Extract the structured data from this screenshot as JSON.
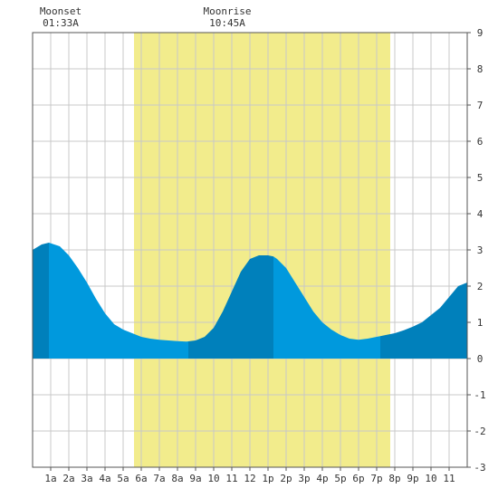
{
  "chart_data": {
    "type": "area",
    "title": "",
    "xlabel": "",
    "ylabel": "",
    "x_unit": "hour of day",
    "xlim": [
      0,
      24
    ],
    "ylim": [
      -3,
      9
    ],
    "grid": true,
    "x_ticks": [
      {
        "x": 1,
        "label": "1a"
      },
      {
        "x": 2,
        "label": "2a"
      },
      {
        "x": 3,
        "label": "3a"
      },
      {
        "x": 4,
        "label": "4a"
      },
      {
        "x": 5,
        "label": "5a"
      },
      {
        "x": 6,
        "label": "6a"
      },
      {
        "x": 7,
        "label": "7a"
      },
      {
        "x": 8,
        "label": "8a"
      },
      {
        "x": 9,
        "label": "9a"
      },
      {
        "x": 10,
        "label": "10"
      },
      {
        "x": 11,
        "label": "11"
      },
      {
        "x": 12,
        "label": "12"
      },
      {
        "x": 13,
        "label": "1p"
      },
      {
        "x": 14,
        "label": "2p"
      },
      {
        "x": 15,
        "label": "3p"
      },
      {
        "x": 16,
        "label": "4p"
      },
      {
        "x": 17,
        "label": "5p"
      },
      {
        "x": 18,
        "label": "6p"
      },
      {
        "x": 19,
        "label": "7p"
      },
      {
        "x": 20,
        "label": "8p"
      },
      {
        "x": 21,
        "label": "9p"
      },
      {
        "x": 22,
        "label": "10"
      },
      {
        "x": 23,
        "label": "11"
      }
    ],
    "y_ticks": [
      -3,
      -2,
      -1,
      0,
      1,
      2,
      3,
      4,
      5,
      6,
      7,
      8,
      9
    ],
    "daylight": {
      "start": 5.6,
      "end": 19.75
    },
    "tide_series": {
      "x": [
        0,
        0.5,
        0.9,
        1.5,
        2,
        2.5,
        3,
        3.5,
        4,
        4.5,
        5,
        5.5,
        6,
        6.5,
        7,
        7.5,
        8,
        8.5,
        9,
        9.5,
        10,
        10.5,
        11,
        11.5,
        12,
        12.5,
        13,
        13.3,
        13.5,
        14,
        14.5,
        15,
        15.5,
        16,
        16.5,
        17,
        17.5,
        18,
        18.5,
        19,
        19.5,
        20,
        20.5,
        21,
        21.5,
        22,
        22.5,
        23,
        23.5,
        24
      ],
      "y": [
        3.0,
        3.15,
        3.2,
        3.1,
        2.85,
        2.5,
        2.1,
        1.65,
        1.25,
        0.95,
        0.8,
        0.7,
        0.6,
        0.55,
        0.52,
        0.5,
        0.48,
        0.47,
        0.5,
        0.6,
        0.85,
        1.3,
        1.85,
        2.4,
        2.75,
        2.85,
        2.85,
        2.82,
        2.75,
        2.5,
        2.1,
        1.7,
        1.3,
        1.0,
        0.8,
        0.65,
        0.55,
        0.52,
        0.55,
        0.6,
        0.65,
        0.7,
        0.78,
        0.88,
        1.0,
        1.2,
        1.4,
        1.7,
        2.0,
        2.1
      ]
    },
    "tide_bands": [
      {
        "start": 0,
        "end": 0.9,
        "tone": "dark"
      },
      {
        "start": 0.9,
        "end": 8.6,
        "tone": "light"
      },
      {
        "start": 8.6,
        "end": 13.3,
        "tone": "dark"
      },
      {
        "start": 13.3,
        "end": 19.2,
        "tone": "light"
      },
      {
        "start": 19.2,
        "end": 24,
        "tone": "dark"
      }
    ],
    "annotations": [
      {
        "name": "moonset",
        "label": "Moonset",
        "time": "01:33A",
        "x": 1.55
      },
      {
        "name": "moonrise",
        "label": "Moonrise",
        "time": "10:45A",
        "x": 10.75
      }
    ],
    "colors": {
      "daylight": "#f2ec8c",
      "tide_light": "#0099dd",
      "tide_dark": "#0080bb",
      "grid": "#c8c8c8",
      "frame": "#555555",
      "text": "#333333"
    }
  }
}
